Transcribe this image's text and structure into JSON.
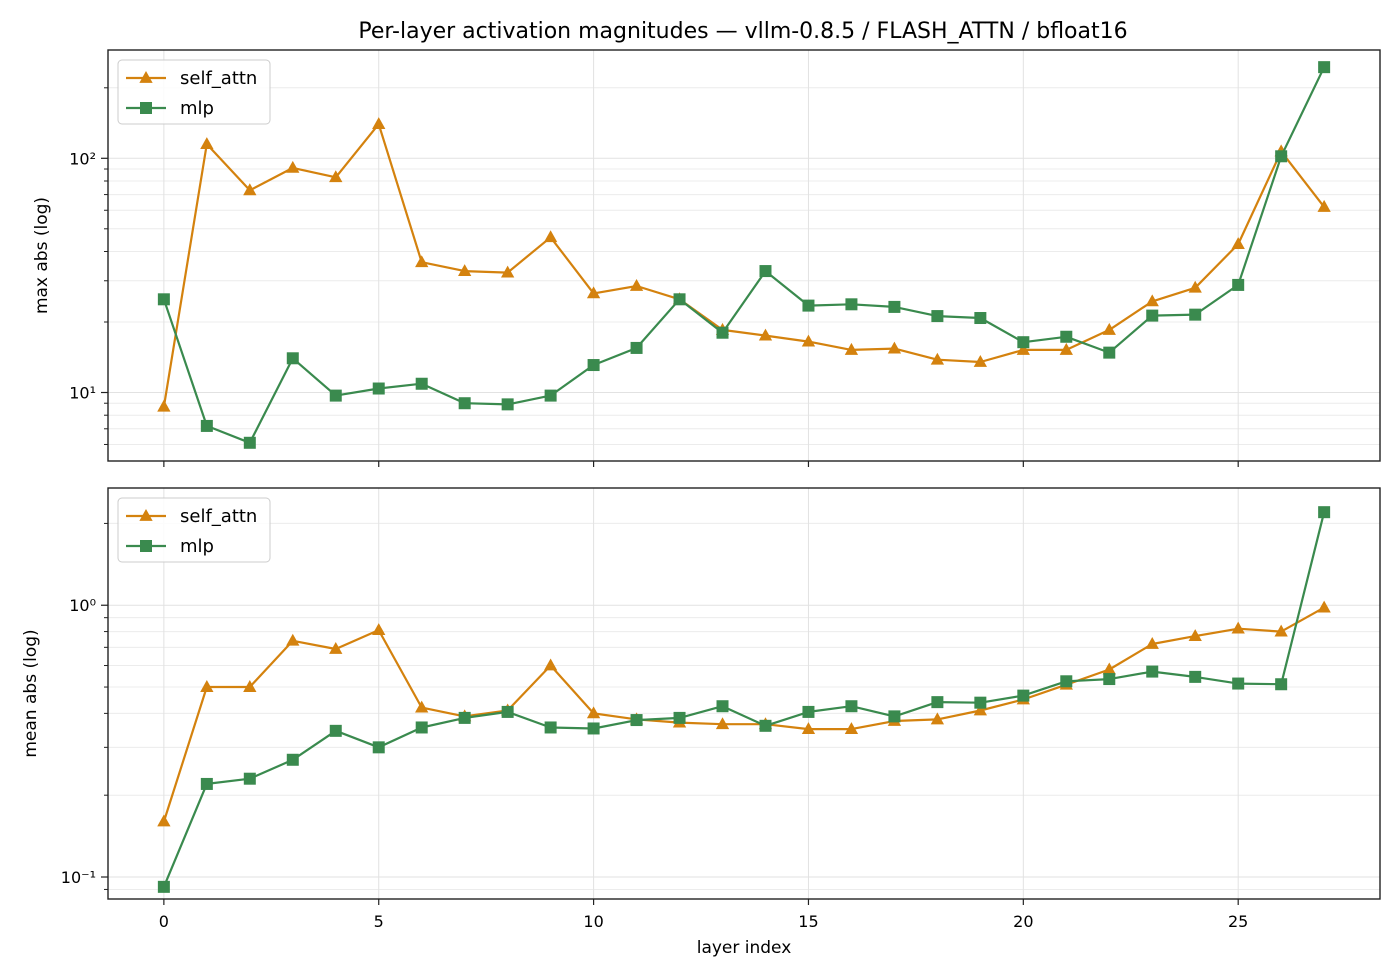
{
  "title": "Per-layer activation magnitudes — vllm-0.8.5 / FLASH_ATTN / bfloat16",
  "colors": {
    "self_attn": "#d4820e",
    "mlp": "#3a8a4e"
  },
  "chart_data": [
    {
      "type": "line",
      "ylabel": "max abs (log)",
      "xlabel": "",
      "yscale": "log",
      "xlim": [
        -1.3,
        28.3
      ],
      "ylim": [
        5.1,
        290
      ],
      "x_ticks": [
        0,
        5,
        10,
        15,
        20,
        25
      ],
      "y_ticks": [
        10,
        100
      ],
      "y_tick_labels": [
        "10¹",
        "10²"
      ],
      "grid": true,
      "legend": "top-left",
      "x": [
        0,
        1,
        2,
        3,
        4,
        5,
        6,
        7,
        8,
        9,
        10,
        11,
        12,
        13,
        14,
        15,
        16,
        17,
        18,
        19,
        20,
        21,
        22,
        23,
        24,
        25,
        26,
        27
      ],
      "series": [
        {
          "name": "self_attn",
          "marker": "triangle",
          "values": [
            8.7,
            115,
            73,
            91,
            83,
            140,
            36,
            33,
            32.5,
            46,
            26.5,
            28.5,
            25,
            18.5,
            17.5,
            16.5,
            15.2,
            15.4,
            13.8,
            13.5,
            15.2,
            15.2,
            18.5,
            24.5,
            28,
            43,
            107,
            62
          ]
        },
        {
          "name": "mlp",
          "marker": "square",
          "values": [
            25,
            7.2,
            6.1,
            14,
            9.7,
            10.4,
            10.9,
            9,
            8.9,
            9.7,
            13.1,
            15.5,
            25,
            18,
            33,
            23.5,
            23.8,
            23.2,
            21.2,
            20.8,
            16.4,
            17.3,
            14.8,
            21.3,
            21.5,
            28.8,
            102,
            245
          ]
        }
      ]
    },
    {
      "type": "line",
      "ylabel": "mean abs (log)",
      "xlabel": "layer index",
      "yscale": "log",
      "xlim": [
        -1.3,
        28.3
      ],
      "ylim": [
        0.083,
        2.7
      ],
      "x_ticks": [
        0,
        5,
        10,
        15,
        20,
        25
      ],
      "x_tick_labels": [
        "0",
        "5",
        "10",
        "15",
        "20",
        "25"
      ],
      "y_ticks": [
        0.1,
        1
      ],
      "y_tick_labels": [
        "10⁻¹",
        "10⁰"
      ],
      "grid": true,
      "legend": "top-left",
      "x": [
        0,
        1,
        2,
        3,
        4,
        5,
        6,
        7,
        8,
        9,
        10,
        11,
        12,
        13,
        14,
        15,
        16,
        17,
        18,
        19,
        20,
        21,
        22,
        23,
        24,
        25,
        26,
        27
      ],
      "series": [
        {
          "name": "self_attn",
          "marker": "triangle",
          "values": [
            0.16,
            0.5,
            0.5,
            0.74,
            0.69,
            0.81,
            0.42,
            0.39,
            0.41,
            0.6,
            0.4,
            0.38,
            0.37,
            0.365,
            0.365,
            0.35,
            0.35,
            0.375,
            0.38,
            0.41,
            0.45,
            0.51,
            0.58,
            0.72,
            0.77,
            0.82,
            0.8,
            0.98
          ]
        },
        {
          "name": "mlp",
          "marker": "square",
          "values": [
            0.092,
            0.22,
            0.23,
            0.27,
            0.345,
            0.3,
            0.355,
            0.385,
            0.405,
            0.355,
            0.352,
            0.378,
            0.385,
            0.425,
            0.36,
            0.405,
            0.425,
            0.39,
            0.44,
            0.438,
            0.465,
            0.525,
            0.535,
            0.57,
            0.545,
            0.515,
            0.512,
            2.2
          ]
        }
      ]
    }
  ]
}
